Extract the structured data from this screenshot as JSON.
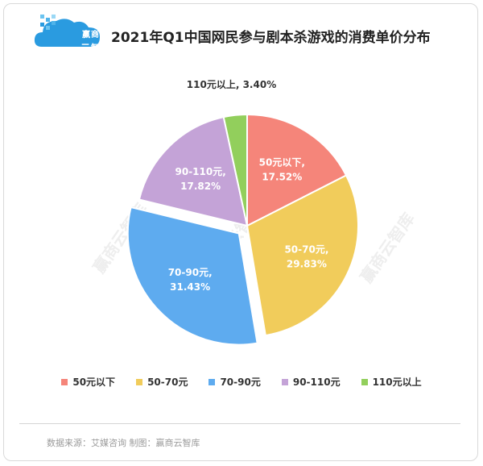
{
  "title": "2021年Q1中国网民参与剧本杀游戏的消费单价分布",
  "logo": {
    "line1": "赢商",
    "line2": "云智库"
  },
  "source": "数据来源：艾媒咨询  制图：赢商云智库",
  "watermark": "赢商云智库",
  "chart_data": {
    "type": "pie",
    "categories": [
      "50元以下",
      "50-70元",
      "70-90元",
      "90-110元",
      "110元以上"
    ],
    "values": [
      17.52,
      29.83,
      31.43,
      17.82,
      3.4
    ],
    "value_labels": [
      "17.52%",
      "29.83%",
      "31.43%",
      "17.82%",
      "3.40%"
    ],
    "slice_labels": [
      "50元以下,",
      "50-70元,",
      "70-90元,",
      "90-110元,",
      "110元以上,"
    ],
    "colors": [
      "#f5857a",
      "#f1cc5b",
      "#5eabef",
      "#c4a3d7",
      "#92cf5c"
    ],
    "exploded": "70-90元",
    "start": "12 o'clock, clockwise",
    "legend_position": "bottom"
  }
}
